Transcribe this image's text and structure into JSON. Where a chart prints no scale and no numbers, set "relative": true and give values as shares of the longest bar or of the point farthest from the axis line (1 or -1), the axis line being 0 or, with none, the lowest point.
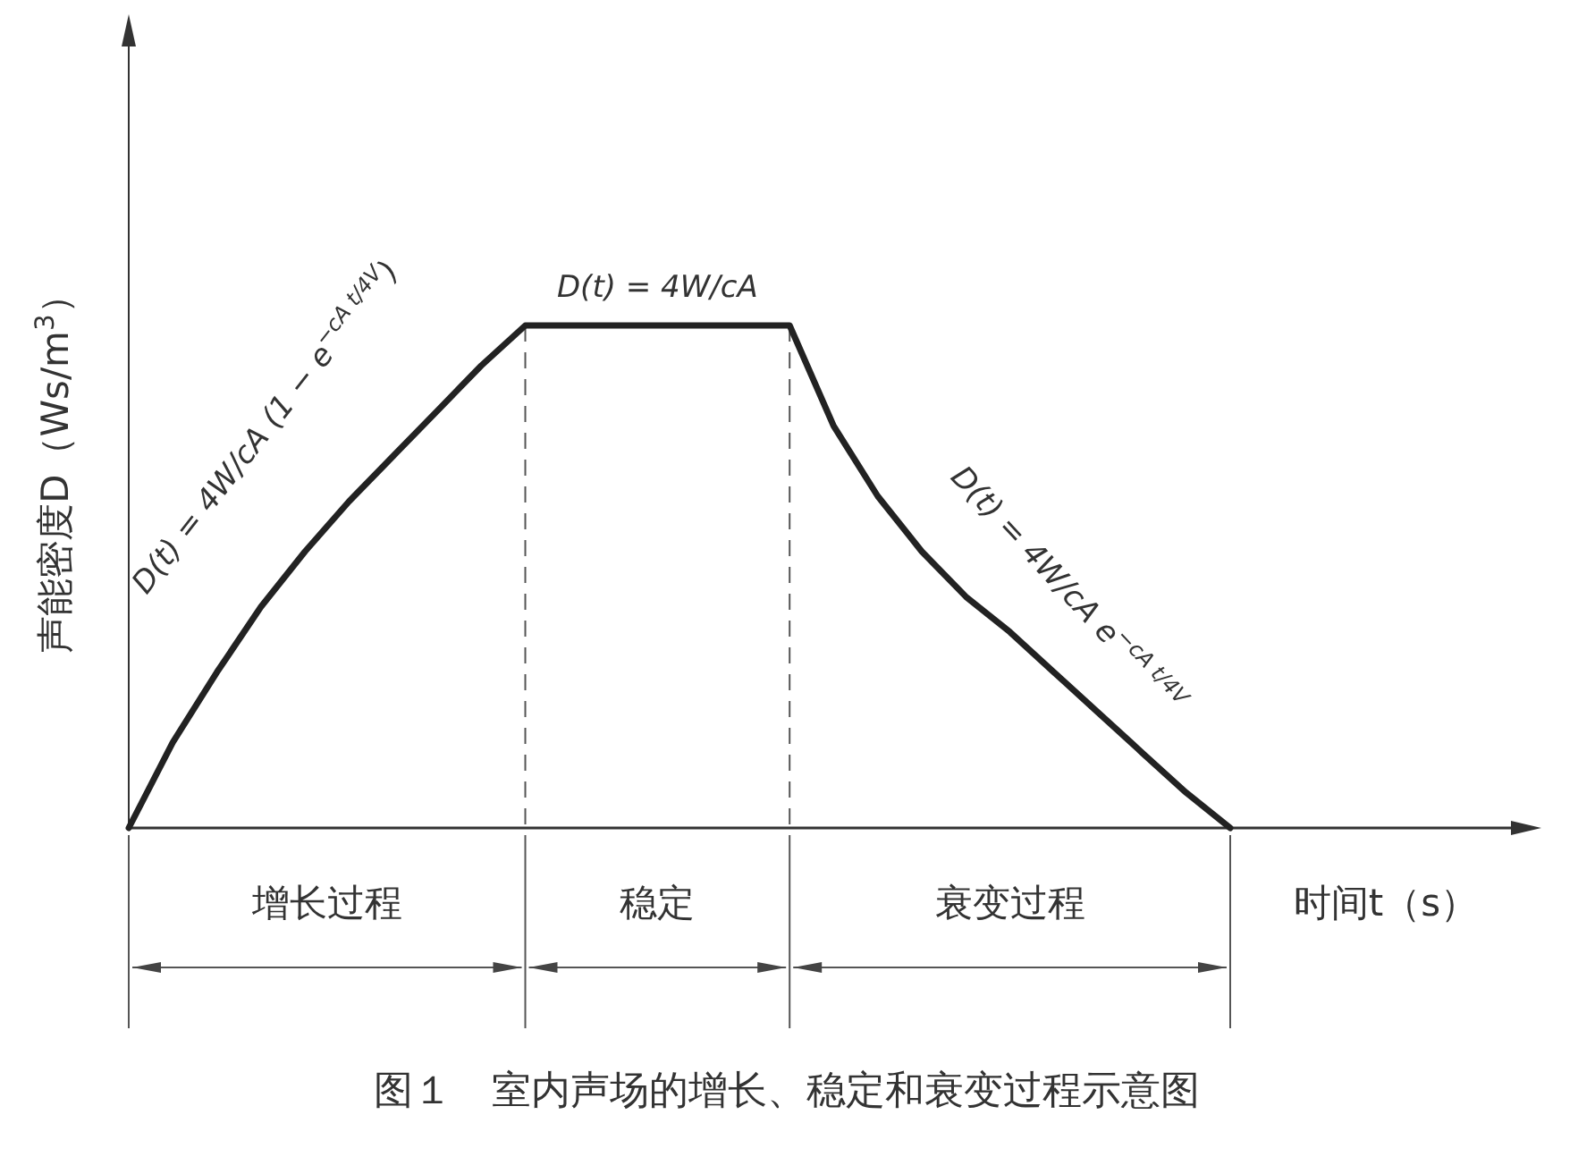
{
  "chart_data": {
    "type": "line",
    "relative": true,
    "title": "图１　室内声场的增长、稳定和衰变过程示意图",
    "ylabel": "声能密度D（Ws/m$^{3}$）",
    "xlabel": "时间t（s）",
    "categories": [
      null,
      null,
      null,
      null,
      null,
      null,
      null,
      null,
      null,
      null,
      null,
      null,
      null,
      null,
      null,
      null,
      null,
      null,
      null,
      null,
      null,
      null,
      null,
      null,
      null,
      null
    ],
    "series": [
      {
        "color": "#222222",
        "values": [
          0,
          0.17,
          0.31,
          0.44,
          0.55,
          0.65,
          0.74,
          0.83,
          0.92,
          1,
          1,
          1,
          1,
          1,
          1,
          1,
          0.8,
          0.66,
          0.55,
          0.46,
          0.39,
          0.31,
          0.23,
          0.15,
          0.07,
          0
        ]
      }
    ],
    "annotations": [
      "D(t) = 4W/cA (1 − e$^{−cA t/4V}$)",
      "D(t) = 4W/cA",
      "D(t) = 4W/cA e$^{−cA t/4V}$",
      "增长过程",
      "稳定",
      "衰变过程"
    ],
    "marker": "none",
    "line_style": "solid"
  }
}
